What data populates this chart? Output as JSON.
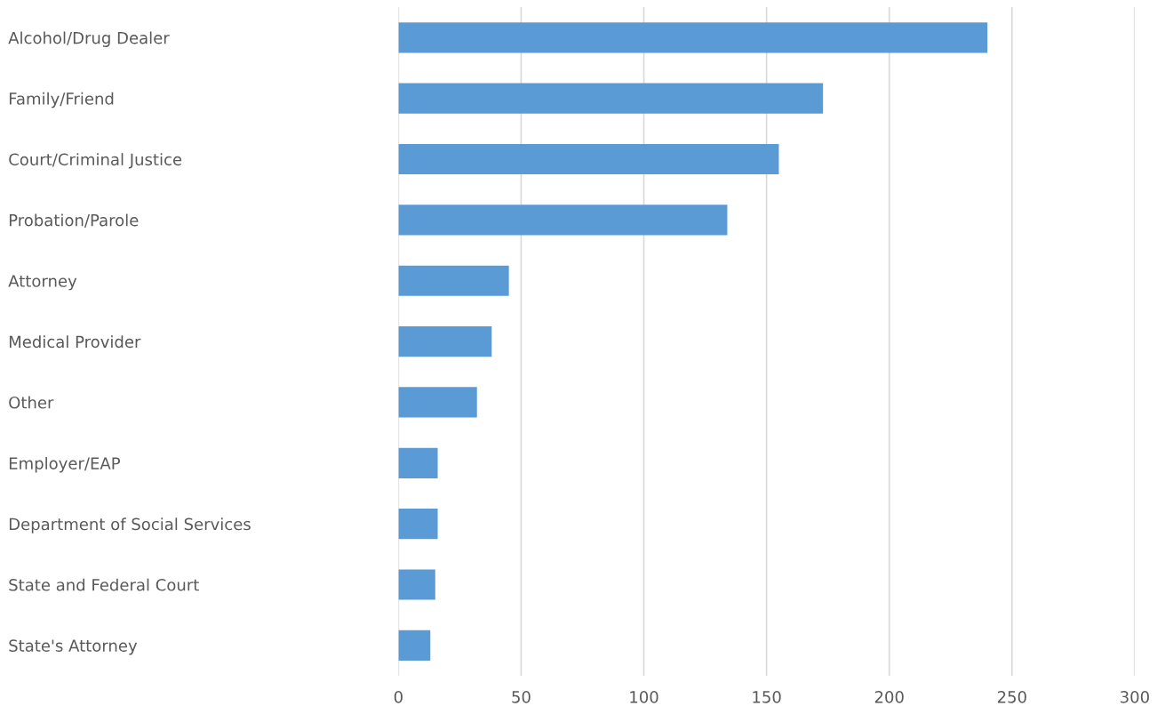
{
  "chart_data": {
    "type": "bar",
    "orientation": "horizontal",
    "categories": [
      "Alcohol/Drug Dealer",
      "Family/Friend",
      "Court/Criminal Justice",
      "Probation/Parole",
      "Attorney",
      "Medical Provider",
      "Other",
      "Employer/EAP",
      "Department of Social Services",
      "State and Federal Court",
      "State's Attorney"
    ],
    "values": [
      240,
      173,
      155,
      134,
      45,
      38,
      32,
      16,
      16,
      15,
      13
    ],
    "color": "#5b9bd5",
    "xlim": [
      0,
      300
    ],
    "xticks": [
      0,
      50,
      100,
      150,
      200,
      250,
      300
    ],
    "grid": "x"
  }
}
